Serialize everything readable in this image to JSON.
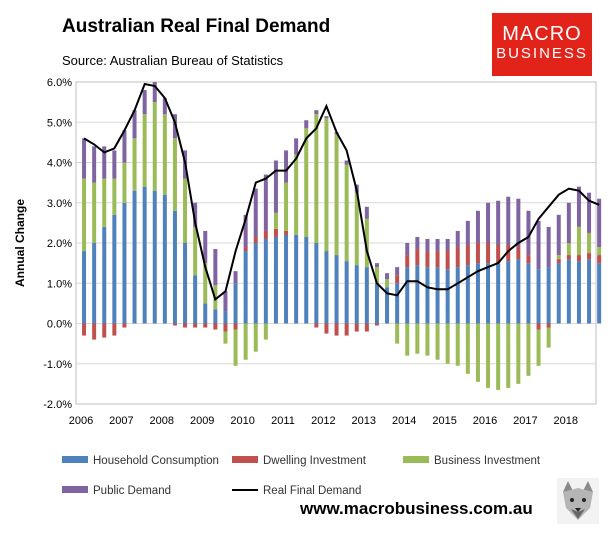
{
  "header": {
    "title": "Australian Real Final Demand",
    "subtitle": "Source: Australian Bureau of Statistics"
  },
  "logo": {
    "line1": "MACRO",
    "line2": "BUSINESS"
  },
  "footer": {
    "url": "www.macrobusiness.com.au"
  },
  "chart_data": {
    "type": "bar",
    "stacked": true,
    "title": "Australian Real Final Demand",
    "ylabel": "Annual Change",
    "xlabel": "",
    "ylim": [
      -2.0,
      6.0
    ],
    "yticks": [
      -2.0,
      -1.0,
      0.0,
      1.0,
      2.0,
      3.0,
      4.0,
      5.0,
      6.0
    ],
    "ytick_labels": [
      "-2.0%",
      "-1.0%",
      "0.0%",
      "1.0%",
      "2.0%",
      "3.0%",
      "4.0%",
      "5.0%",
      "6.0%"
    ],
    "x_labels": [
      "2006",
      "2007",
      "2008",
      "2009",
      "2010",
      "2011",
      "2012",
      "2013",
      "2014",
      "2015",
      "2016",
      "2017",
      "2018"
    ],
    "periods_per_label": 4,
    "grid": true,
    "legend_position": "bottom",
    "colors": {
      "household": "#4f81bd",
      "dwelling": "#c0504d",
      "business": "#9bbb59",
      "public": "#8064a2",
      "total": "#000000"
    },
    "series": [
      {
        "name": "Household Consumption",
        "key": "household",
        "kind": "bar",
        "values": [
          1.8,
          2.0,
          2.4,
          2.7,
          3.0,
          3.3,
          3.4,
          3.3,
          3.2,
          2.8,
          2.0,
          1.2,
          0.5,
          0.35,
          0.3,
          1.0,
          1.8,
          2.0,
          2.1,
          2.15,
          2.2,
          2.2,
          2.15,
          2.0,
          1.8,
          1.7,
          1.55,
          1.45,
          1.4,
          1.0,
          0.9,
          1.0,
          1.4,
          1.45,
          1.4,
          1.4,
          1.35,
          1.4,
          1.45,
          1.5,
          1.5,
          1.5,
          1.55,
          1.6,
          1.5,
          1.35,
          1.4,
          1.5,
          1.6,
          1.55,
          1.6,
          1.5
        ]
      },
      {
        "name": "Dwelling Investment",
        "key": "dwelling",
        "kind": "bar",
        "values": [
          -0.3,
          -0.4,
          -0.35,
          -0.3,
          -0.1,
          0.0,
          0.0,
          0.0,
          0.0,
          -0.05,
          -0.1,
          -0.1,
          -0.1,
          -0.15,
          -0.2,
          -0.15,
          0.1,
          0.15,
          0.2,
          0.2,
          0.1,
          0.0,
          0.0,
          -0.1,
          -0.25,
          -0.3,
          -0.3,
          -0.2,
          -0.2,
          -0.05,
          0.0,
          0.2,
          0.3,
          0.4,
          0.4,
          0.4,
          0.45,
          0.5,
          0.5,
          0.5,
          0.5,
          0.45,
          0.4,
          0.3,
          0.2,
          -0.15,
          -0.1,
          0.1,
          0.1,
          0.15,
          0.15,
          0.2
        ]
      },
      {
        "name": "Business Investment",
        "key": "business",
        "kind": "bar",
        "values": [
          1.8,
          1.5,
          1.2,
          0.9,
          1.0,
          1.3,
          1.8,
          2.2,
          2.0,
          1.8,
          1.6,
          1.2,
          1.0,
          0.6,
          -0.3,
          -0.9,
          -0.9,
          -0.7,
          -0.4,
          0.4,
          1.2,
          2.0,
          2.7,
          3.2,
          3.3,
          3.0,
          2.4,
          1.8,
          1.2,
          0.4,
          0.2,
          -0.5,
          -0.8,
          -0.75,
          -0.8,
          -0.9,
          -1.0,
          -1.05,
          -1.25,
          -1.45,
          -1.6,
          -1.65,
          -1.6,
          -1.5,
          -1.3,
          -0.9,
          -0.5,
          0.1,
          0.3,
          0.7,
          0.5,
          0.2
        ]
      },
      {
        "name": "Public Demand",
        "key": "public",
        "kind": "bar",
        "values": [
          1.0,
          0.9,
          0.8,
          0.7,
          0.8,
          0.7,
          0.6,
          0.5,
          0.4,
          0.6,
          0.7,
          0.6,
          0.8,
          0.9,
          0.5,
          0.3,
          0.8,
          1.2,
          1.4,
          1.3,
          0.8,
          0.4,
          0.2,
          0.1,
          0.05,
          0.05,
          0.1,
          0.2,
          0.3,
          0.1,
          0.15,
          0.2,
          0.3,
          0.3,
          0.3,
          0.3,
          0.3,
          0.4,
          0.6,
          0.8,
          1.0,
          1.1,
          1.2,
          1.2,
          1.1,
          1.2,
          1.0,
          1.0,
          1.0,
          1.0,
          1.0,
          1.2
        ]
      },
      {
        "name": "Real Final Demand",
        "key": "total",
        "kind": "line",
        "values": [
          4.6,
          4.45,
          4.25,
          4.35,
          4.8,
          5.3,
          5.95,
          5.9,
          5.6,
          5.0,
          4.0,
          2.5,
          1.4,
          0.6,
          0.8,
          1.8,
          2.6,
          3.5,
          3.6,
          3.8,
          3.8,
          4.1,
          4.6,
          4.85,
          5.4,
          4.75,
          4.3,
          3.3,
          1.8,
          1.0,
          0.75,
          0.7,
          1.05,
          1.05,
          0.9,
          0.85,
          0.85,
          1.0,
          1.15,
          1.3,
          1.4,
          1.5,
          1.8,
          2.0,
          2.15,
          2.6,
          2.9,
          3.2,
          3.35,
          3.3,
          3.05,
          2.95
        ]
      }
    ]
  }
}
